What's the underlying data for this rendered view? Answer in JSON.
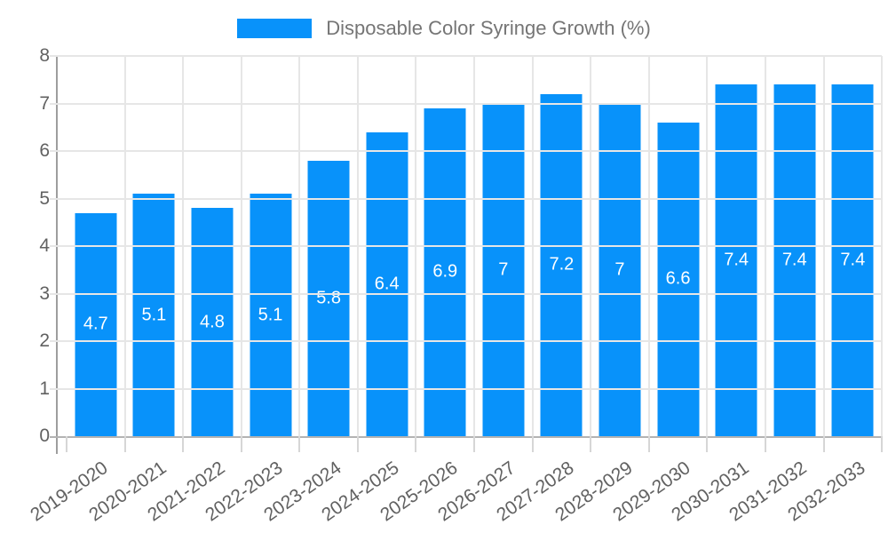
{
  "legend": {
    "label": "Disposable Color Syringe Growth (%)"
  },
  "chart_data": {
    "type": "bar",
    "title": "Disposable Color Syringe Growth (%)",
    "categories": [
      "2019-2020",
      "2020-2021",
      "2021-2022",
      "2022-2023",
      "2023-2024",
      "2024-2025",
      "2025-2026",
      "2026-2027",
      "2027-2028",
      "2028-2029",
      "2029-2030",
      "2030-2031",
      "2031-2032",
      "2032-2033"
    ],
    "series": [
      {
        "name": "Disposable Color Syringe Growth (%)",
        "values": [
          4.7,
          5.1,
          4.8,
          5.1,
          5.8,
          6.4,
          6.9,
          7,
          7.2,
          7,
          6.6,
          7.4,
          7.4,
          7.4
        ]
      }
    ],
    "values": [
      4.7,
      5.1,
      4.8,
      5.1,
      5.8,
      6.4,
      6.9,
      7,
      7.2,
      7,
      6.6,
      7.4,
      7.4,
      7.4
    ],
    "value_labels": [
      "4.7",
      "5.1",
      "4.8",
      "5.1",
      "5.8",
      "6.4",
      "6.9",
      "7",
      "7.2",
      "7",
      "6.6",
      "7.4",
      "7.4",
      "7.4"
    ],
    "xlabel": "",
    "ylabel": "",
    "ylim": [
      0,
      8
    ],
    "yticks": [
      0,
      1,
      2,
      3,
      4,
      5,
      6,
      7,
      8
    ],
    "grid": true,
    "legend_position": "top",
    "bar_color": "#0892fa",
    "value_label_style": "white, centered inside bar"
  },
  "colors": {
    "bar": "#0892fa",
    "grid": "#e6e6e6",
    "axis_y": "#9e9e9e",
    "axis_x": "#b3b3b3",
    "tick": "#d6d6d6",
    "axis_text": "#616161",
    "legend_text": "#757575",
    "value_text": "#ffffff",
    "background": "#ffffff"
  }
}
